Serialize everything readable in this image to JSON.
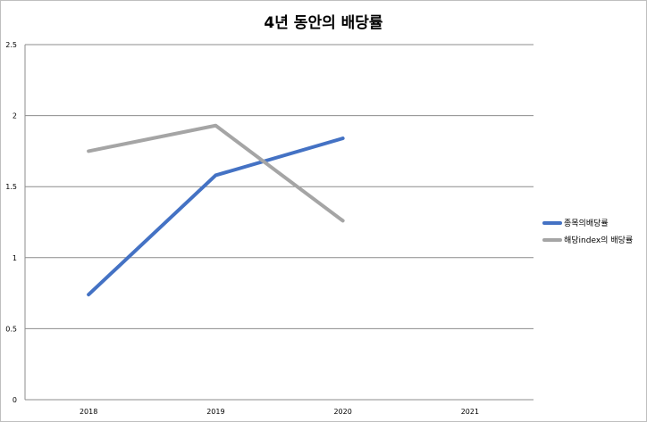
{
  "chart_data": {
    "type": "line",
    "title": "4년 동안의 배당률",
    "categories": [
      "2018",
      "2019",
      "2020",
      "2021"
    ],
    "ylim": [
      0,
      2.5
    ],
    "yticks": [
      "0",
      "0.5",
      "1",
      "1.5",
      "2",
      "2.5"
    ],
    "grid": true,
    "legend_position": "right",
    "series": [
      {
        "name": "종목의배당률",
        "color": "#4472c4",
        "values": [
          0.74,
          1.58,
          1.84,
          null
        ]
      },
      {
        "name": "해당index의 배당률",
        "color": "#a5a5a5",
        "values": [
          1.75,
          1.93,
          1.26,
          null
        ]
      }
    ]
  }
}
